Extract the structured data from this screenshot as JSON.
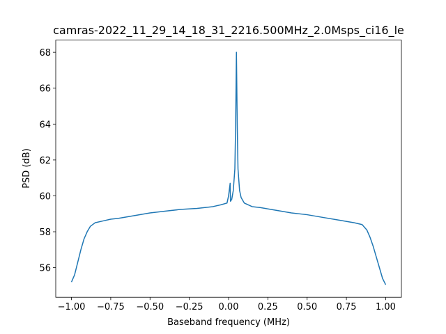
{
  "chart_data": {
    "type": "line",
    "title": "camras-2022_11_29_14_18_31_2216.500MHz_2.0Msps_ci16_le",
    "x_label": "Baseband frequency (MHz)",
    "y_label": "PSD (dB)",
    "x": [
      -1.0,
      -0.98,
      -0.96,
      -0.94,
      -0.92,
      -0.9,
      -0.88,
      -0.85,
      -0.8,
      -0.75,
      -0.7,
      -0.6,
      -0.5,
      -0.4,
      -0.3,
      -0.2,
      -0.1,
      -0.05,
      -0.01,
      0.0,
      0.01,
      0.012,
      0.02,
      0.03,
      0.04,
      0.045,
      0.05,
      0.055,
      0.06,
      0.07,
      0.08,
      0.1,
      0.15,
      0.2,
      0.3,
      0.4,
      0.5,
      0.6,
      0.7,
      0.8,
      0.85,
      0.88,
      0.9,
      0.92,
      0.94,
      0.96,
      0.98,
      1.0
    ],
    "values": [
      55.2,
      55.6,
      56.3,
      57.0,
      57.6,
      58.0,
      58.3,
      58.5,
      58.6,
      58.7,
      58.75,
      58.9,
      59.05,
      59.15,
      59.25,
      59.3,
      59.4,
      59.5,
      59.6,
      60.0,
      60.7,
      59.7,
      59.8,
      60.3,
      61.5,
      64.0,
      68.0,
      64.0,
      61.5,
      60.3,
      59.9,
      59.6,
      59.4,
      59.35,
      59.2,
      59.05,
      58.95,
      58.8,
      58.65,
      58.5,
      58.4,
      58.1,
      57.7,
      57.2,
      56.6,
      56.0,
      55.4,
      55.05
    ],
    "color": "#1f77b4",
    "xlim": [
      -1.1,
      1.1
    ],
    "ylim": [
      54.35,
      68.68
    ],
    "xticks": [
      {
        "value": -1.0,
        "label": "−1.00"
      },
      {
        "value": -0.75,
        "label": "−0.75"
      },
      {
        "value": -0.5,
        "label": "−0.50"
      },
      {
        "value": -0.25,
        "label": "−0.25"
      },
      {
        "value": 0.0,
        "label": "0.00"
      },
      {
        "value": 0.25,
        "label": "0.25"
      },
      {
        "value": 0.5,
        "label": "0.50"
      },
      {
        "value": 0.75,
        "label": "0.75"
      },
      {
        "value": 1.0,
        "label": "1.00"
      }
    ],
    "yticks": [
      56,
      58,
      60,
      62,
      64,
      66,
      68
    ]
  }
}
